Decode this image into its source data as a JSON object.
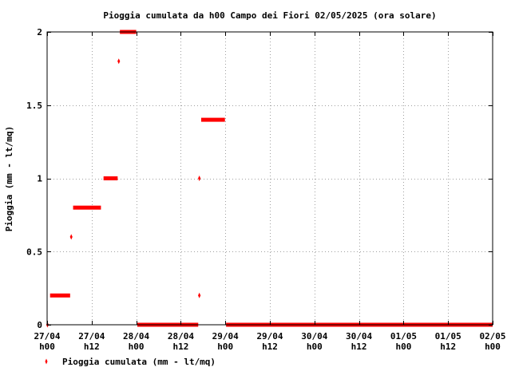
{
  "chart_data": {
    "type": "scatter",
    "title": "Pioggia cumulata da h00 Campo dei Fiori 02/05/2025 (ora solare)",
    "ylabel": "Pioggia (mm - lt/mq)",
    "xlabel": "",
    "xlim_hours": [
      0,
      120
    ],
    "ylim": [
      0,
      2
    ],
    "yticks": [
      {
        "value": 0,
        "label": "0"
      },
      {
        "value": 0.5,
        "label": "0.5"
      },
      {
        "value": 1,
        "label": "1"
      },
      {
        "value": 1.5,
        "label": "1.5"
      },
      {
        "value": 2,
        "label": "2"
      }
    ],
    "xticks": [
      {
        "hour": 0,
        "label1": "27/04",
        "label2": "h00"
      },
      {
        "hour": 12,
        "label1": "27/04",
        "label2": "h12"
      },
      {
        "hour": 24,
        "label1": "28/04",
        "label2": "h00"
      },
      {
        "hour": 36,
        "label1": "28/04",
        "label2": "h12"
      },
      {
        "hour": 48,
        "label1": "29/04",
        "label2": "h00"
      },
      {
        "hour": 60,
        "label1": "29/04",
        "label2": "h12"
      },
      {
        "hour": 72,
        "label1": "30/04",
        "label2": "h00"
      },
      {
        "hour": 84,
        "label1": "30/04",
        "label2": "h12"
      },
      {
        "hour": 96,
        "label1": "01/05",
        "label2": "h00"
      },
      {
        "hour": 108,
        "label1": "01/05",
        "label2": "h12"
      },
      {
        "hour": 120,
        "label1": "02/05",
        "label2": "h00"
      }
    ],
    "grid": true,
    "legend_position": "bottom-left",
    "series": [
      {
        "name": "Pioggia cumulata (mm - lt/mq)",
        "color": "#ff0000",
        "segments": [
          {
            "x_start": 0.8,
            "x_end": 6.2,
            "y": 0.2
          },
          {
            "x_start": 7.0,
            "x_end": 14.5,
            "y": 0.8
          },
          {
            "x_start": 15.2,
            "x_end": 19.0,
            "y": 1.0
          },
          {
            "x_start": 19.6,
            "x_end": 24.0,
            "y": 2.0
          },
          {
            "x_start": 24.3,
            "x_end": 40.7,
            "y": 0
          },
          {
            "x_start": 41.5,
            "x_end": 47.9,
            "y": 1.4
          },
          {
            "x_start": 48.2,
            "x_end": 120.0,
            "y": 0
          }
        ],
        "points": [
          {
            "x": 0.1,
            "y": 0
          },
          {
            "x": 6.5,
            "y": 0.6
          },
          {
            "x": 19.3,
            "y": 1.8
          },
          {
            "x": 41.0,
            "y": 0.2
          },
          {
            "x": 41.0,
            "y": 1.0
          }
        ]
      }
    ]
  }
}
